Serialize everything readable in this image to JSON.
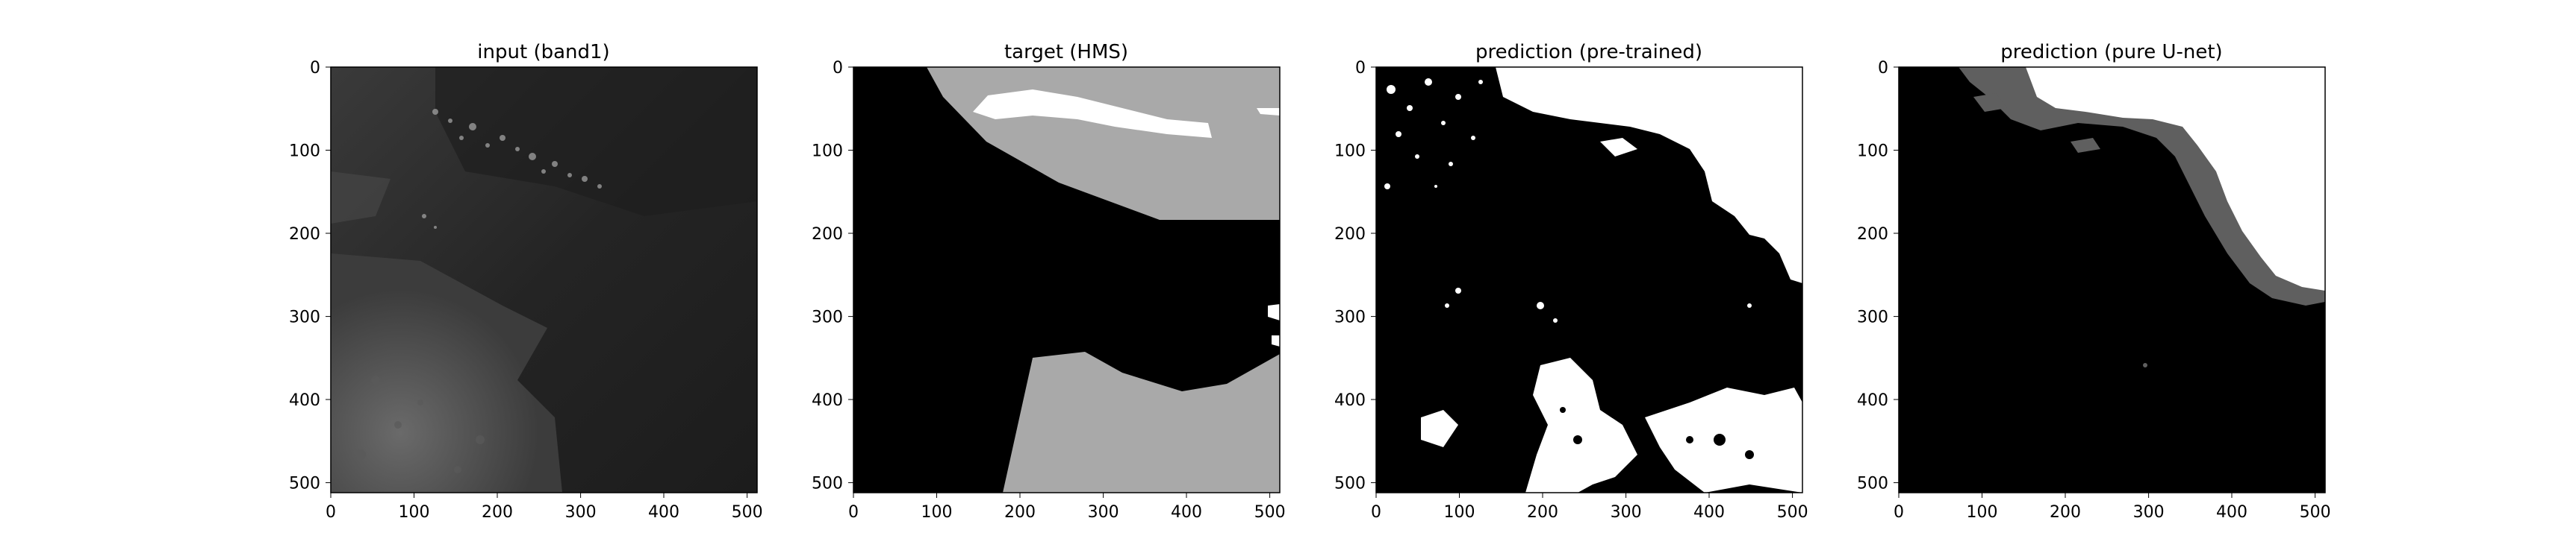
{
  "figure": {
    "panels": [
      {
        "title": "input (band1)",
        "image_kind": "grayscale-satellite-image"
      },
      {
        "title": "target (HMS)",
        "image_kind": "three-level-mask"
      },
      {
        "title": "prediction (pre-trained)",
        "image_kind": "binary-mask"
      },
      {
        "title": "prediction (pure U-net)",
        "image_kind": "three-level-mask"
      }
    ],
    "axes": {
      "x_ticks": [
        "0",
        "100",
        "200",
        "300",
        "400",
        "500"
      ],
      "y_ticks": [
        "0",
        "100",
        "200",
        "300",
        "400",
        "500"
      ],
      "x_range": [
        0,
        512
      ],
      "y_range": [
        512,
        0
      ]
    },
    "colors": {
      "background": "#ffffff",
      "mask_black": "#000000",
      "mask_gray": "#a9a9a9",
      "mask_dark_gray": "#5f5f5f",
      "mask_white": "#ffffff"
    }
  }
}
